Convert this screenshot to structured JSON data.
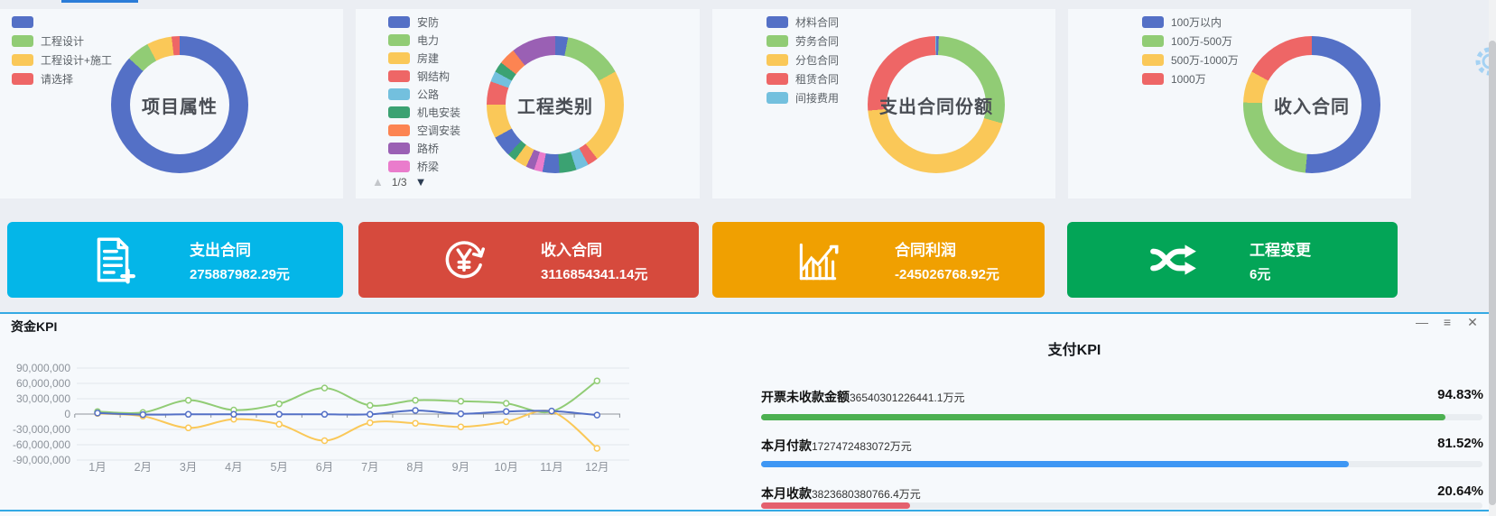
{
  "donut_panels": [
    {
      "title": "项目属性",
      "legend": [
        {
          "label": "",
          "color": "#5470c6"
        },
        {
          "label": "工程设计",
          "color": "#91cc75"
        },
        {
          "label": "工程设计+施工",
          "color": "#fac858"
        },
        {
          "label": "请选择",
          "color": "#ee6666"
        }
      ],
      "segments": [
        {
          "color": "#5470c6",
          "pct": 86.8
        },
        {
          "color": "#91cc75",
          "pct": 5.4
        },
        {
          "color": "#fac858",
          "pct": 5.9
        },
        {
          "color": "#ee6666",
          "pct": 1.9
        }
      ]
    },
    {
      "title": "工程类别",
      "legend": [
        {
          "label": "安防",
          "color": "#5470c6"
        },
        {
          "label": "电力",
          "color": "#91cc75"
        },
        {
          "label": "房建",
          "color": "#fac858"
        },
        {
          "label": "钢结构",
          "color": "#ee6666"
        },
        {
          "label": "公路",
          "color": "#73c0de"
        },
        {
          "label": "机电安装",
          "color": "#3ba272"
        },
        {
          "label": "空调安装",
          "color": "#fc8452"
        },
        {
          "label": "路桥",
          "color": "#9a60b4"
        },
        {
          "label": "桥梁",
          "color": "#ea7ccc"
        }
      ],
      "pagination": {
        "current": "1/3",
        "up_icon": "▲",
        "down_icon": "▼"
      },
      "segments": [
        {
          "color": "#5470c6",
          "pct": 3
        },
        {
          "color": "#91cc75",
          "pct": 14
        },
        {
          "color": "#fac858",
          "pct": 22.5
        },
        {
          "color": "#ee6666",
          "pct": 2.5
        },
        {
          "color": "#73c0de",
          "pct": 3
        },
        {
          "color": "#3ba272",
          "pct": 4
        },
        {
          "color": "#5470c6",
          "pct": 4
        },
        {
          "color": "#ea7ccc",
          "pct": 2
        },
        {
          "color": "#9a60b4",
          "pct": 2
        },
        {
          "color": "#fac858",
          "pct": 3
        },
        {
          "color": "#3ba272",
          "pct": 2
        },
        {
          "color": "#5470c6",
          "pct": 5
        },
        {
          "color": "#fac858",
          "pct": 8
        },
        {
          "color": "#ee6666",
          "pct": 5.5
        },
        {
          "color": "#73c0de",
          "pct": 2.5
        },
        {
          "color": "#3ba272",
          "pct": 2.5
        },
        {
          "color": "#fc8452",
          "pct": 4
        },
        {
          "color": "#9a60b4",
          "pct": 10.5
        }
      ]
    },
    {
      "title": "支出合同份额",
      "legend": [
        {
          "label": "材料合同",
          "color": "#5470c6"
        },
        {
          "label": "劳务合同",
          "color": "#91cc75"
        },
        {
          "label": "分包合同",
          "color": "#fac858"
        },
        {
          "label": "租赁合同",
          "color": "#ee6666"
        },
        {
          "label": "间接费用",
          "color": "#73c0de"
        }
      ],
      "segments": [
        {
          "color": "#5470c6",
          "pct": 0.6
        },
        {
          "color": "#91cc75",
          "pct": 28.8
        },
        {
          "color": "#fac858",
          "pct": 44.2
        },
        {
          "color": "#ee6666",
          "pct": 26.2
        },
        {
          "color": "#73c0de",
          "pct": 0.2
        }
      ]
    },
    {
      "title": "收入合同",
      "legend": [
        {
          "label": "100万以内",
          "color": "#5470c6"
        },
        {
          "label": "100万-500万",
          "color": "#91cc75"
        },
        {
          "label": "500万-1000万",
          "color": "#fac858"
        },
        {
          "label": "1000万",
          "color": "#ee6666"
        }
      ],
      "segments": [
        {
          "color": "#5470c6",
          "pct": 51.5
        },
        {
          "color": "#91cc75",
          "pct": 24
        },
        {
          "color": "#fac858",
          "pct": 7.5
        },
        {
          "color": "#ee6666",
          "pct": 17
        }
      ]
    }
  ],
  "kpi_cards": [
    {
      "title": "支出合同",
      "value": "275887982.29元",
      "color": "#04b6e8",
      "icon": "contract-document-icon"
    },
    {
      "title": "收入合同",
      "value": "3116854341.14元",
      "color": "#d64a3d",
      "icon": "yen-refresh-icon"
    },
    {
      "title": "合同利润",
      "value": "-245026768.92元",
      "color": "#f0a001",
      "icon": "profit-chart-icon"
    },
    {
      "title": "工程变更",
      "value": "6元",
      "color": "#03a557",
      "icon": "shuffle-icon"
    }
  ],
  "funds_kpi": {
    "title": "资金KPI",
    "window_controls": [
      {
        "name": "minimize"
      },
      {
        "name": "menu"
      },
      {
        "name": "close"
      }
    ],
    "chart_data": {
      "type": "line",
      "x": [
        "1月",
        "2月",
        "3月",
        "4月",
        "5月",
        "6月",
        "7月",
        "8月",
        "9月",
        "10月",
        "11月",
        "12月"
      ],
      "y_ticks": [
        "90,000,000",
        "60,000,000",
        "30,000,000",
        "0",
        "-30,000,000",
        "-60,000,000",
        "-90,000,000"
      ],
      "ylim": [
        -90000000,
        90000000
      ],
      "grid": true,
      "series": [
        {
          "color": "#91cc75",
          "values": [
            5000000,
            3000000,
            27000000,
            8000000,
            20000000,
            51000000,
            17000000,
            27000000,
            25000000,
            21000000,
            5000000,
            65000000
          ]
        },
        {
          "color": "#fac858",
          "values": [
            1000000,
            -4000000,
            -27000000,
            -10000000,
            -20000000,
            -52000000,
            -17000000,
            -18000000,
            -25000000,
            -15000000,
            5000000,
            -67000000
          ]
        },
        {
          "color": "#5470c6",
          "values": [
            2000000,
            -1000000,
            -500000,
            -500000,
            -500000,
            -500000,
            -500000,
            7000000,
            500000,
            5000000,
            6000000,
            -2000000
          ]
        }
      ]
    }
  },
  "payment_kpi": {
    "title": "支付KPI",
    "rows": [
      {
        "label": "开票未收款金额",
        "value": "36540301226441.1万元",
        "percent": "94.83%",
        "pct": 94.83,
        "color": "#4cb051"
      },
      {
        "label": "本月付款",
        "value": "1727472483072万元",
        "percent": "81.52%",
        "pct": 81.52,
        "color": "#3e97f4"
      },
      {
        "label": "本月收款",
        "value": "3823680380766.4万元",
        "percent": "20.64%",
        "pct": 20.64,
        "color": "#e4606d"
      }
    ]
  }
}
